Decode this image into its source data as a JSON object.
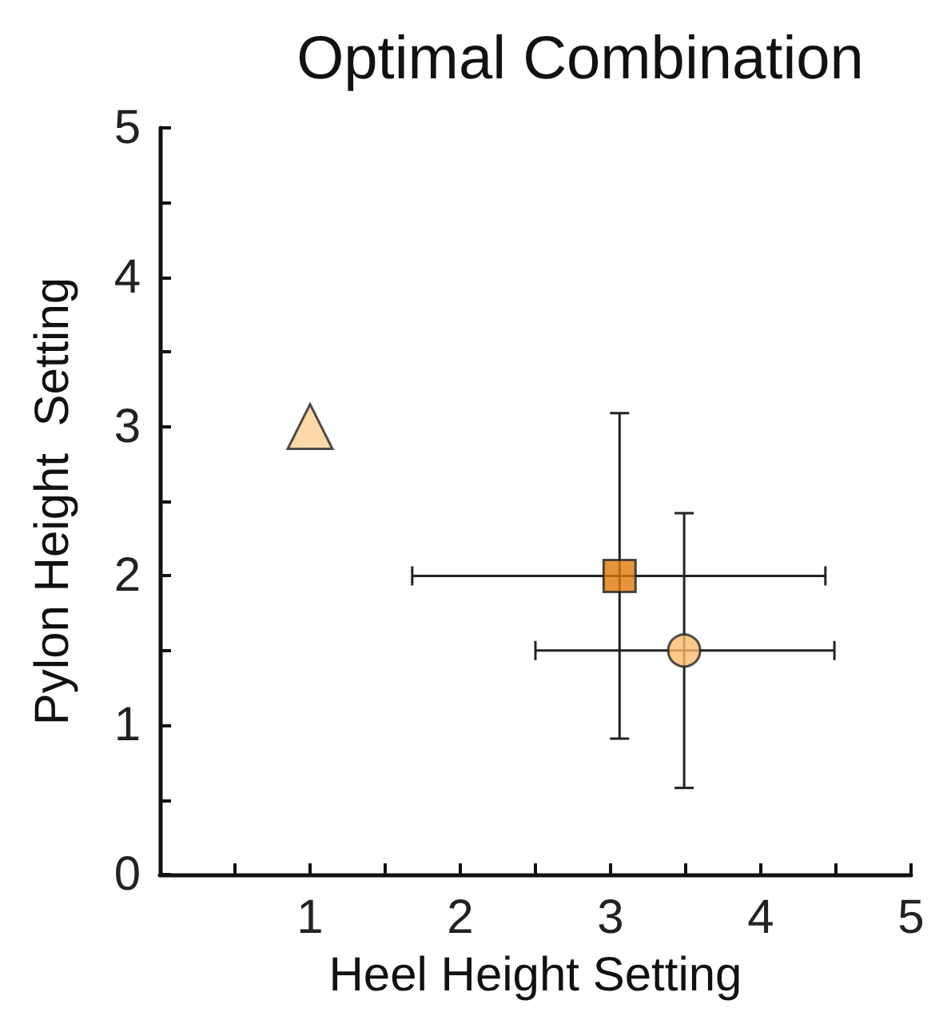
{
  "chart_data": {
    "type": "scatter",
    "title": "Optimal Combination",
    "xlabel": "Heel Height Setting",
    "ylabel": "Pylon Height  Setting",
    "xlim": [
      0,
      5
    ],
    "ylim": [
      0,
      5
    ],
    "xticks": [
      {
        "value": 0.5,
        "label": null
      },
      1,
      {
        "value": 1.5,
        "label": null
      },
      2,
      {
        "value": 2.5,
        "label": null
      },
      3,
      {
        "value": 3.5,
        "label": null
      },
      4,
      {
        "value": 4.5,
        "label": null
      },
      5
    ],
    "yticks": [
      0,
      {
        "value": 0.5,
        "label": null
      },
      1,
      {
        "value": 1.5,
        "label": null
      },
      2,
      {
        "value": 2.5,
        "label": null
      },
      3,
      {
        "value": 3.5,
        "label": null
      },
      4,
      {
        "value": 4.5,
        "label": null
      },
      5
    ],
    "grid": false,
    "series": [
      {
        "color": "#fdcf95",
        "marker": "triangle",
        "x": [
          1
        ],
        "values": [
          3
        ]
      },
      {
        "color": "#e07a0c",
        "marker": "square",
        "x": [
          3.06
        ],
        "values": [
          2
        ],
        "errors": [
          [
            0.91,
            3.09
          ]
        ],
        "xerrors": [
          [
            1.68,
            4.43
          ]
        ]
      },
      {
        "color": "#fdbb6a",
        "marker": "circle",
        "x": [
          3.49
        ],
        "values": [
          1.5
        ],
        "errors": [
          [
            0.58,
            2.42
          ]
        ],
        "xerrors": [
          [
            2.5,
            4.49
          ]
        ]
      }
    ]
  }
}
